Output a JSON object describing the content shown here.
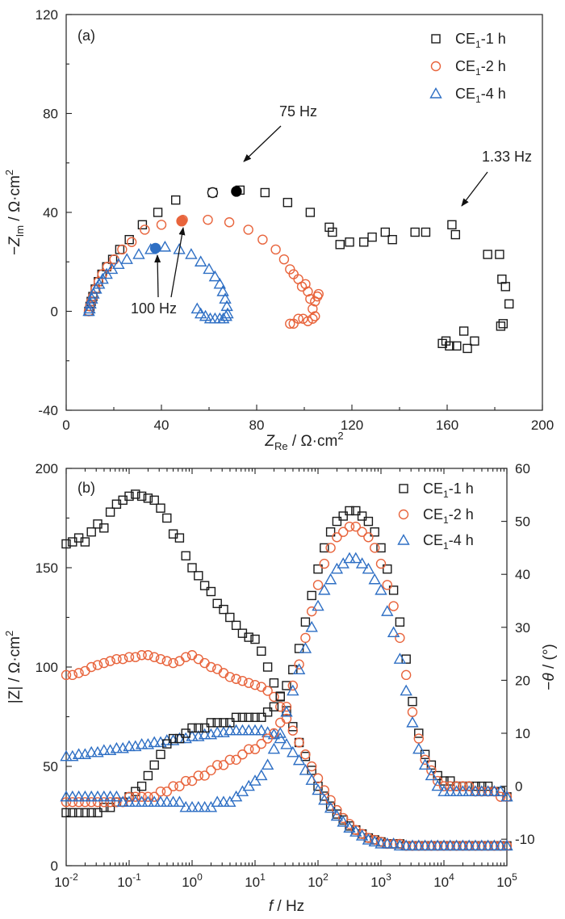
{
  "chart_data": [
    {
      "panel": "(a)",
      "type": "scatter",
      "xlabel": "Z_Re / Ω·cm²",
      "ylabel": "−Z_Im / Ω·cm²",
      "xlim": [
        0,
        200
      ],
      "ylim": [
        -40,
        120
      ],
      "x_ticks": [
        "0",
        "40",
        "80",
        "120",
        "160",
        "200"
      ],
      "y_ticks": [
        "-40",
        "0",
        "40",
        "80",
        "120"
      ],
      "legend_position": "top-right",
      "series": [
        {
          "name": "CE1-1 h",
          "marker": "square",
          "color": "#1a1a1a",
          "x": [
            9.5,
            10.0,
            10.5,
            11.2,
            12.2,
            13.5,
            15.0,
            17.0,
            19.5,
            22.5,
            26.5,
            32.0,
            38.5,
            46.0,
            61.5,
            73.0,
            83.5,
            93.0,
            102.5,
            110.5,
            111.8,
            115.0,
            119.0,
            125.0,
            128.5,
            134.0,
            137.0,
            146.5,
            151.0,
            162.0,
            163.5,
            177.0,
            182.0,
            183.0,
            184.5,
            186.0,
            183.5,
            182.5,
            171.5,
            168.5,
            167.0,
            164.0,
            161.0,
            159.5,
            158.0
          ],
          "y": [
            0,
            2,
            4,
            6,
            9,
            12,
            15,
            18,
            21,
            25,
            29,
            35,
            40,
            45,
            48,
            49,
            48,
            44,
            40,
            34,
            32,
            27,
            28,
            28,
            30,
            32,
            29,
            32,
            32,
            35,
            31,
            23,
            23,
            13,
            10,
            3,
            -5,
            -6,
            -12,
            -15,
            -8,
            -14,
            -14,
            -12,
            -13
          ]
        },
        {
          "name": "CE1-2 h",
          "marker": "circle",
          "color": "#e8643c",
          "x": [
            9.5,
            10.0,
            10.5,
            11.3,
            12.3,
            13.6,
            15.2,
            17.3,
            20.2,
            23.5,
            27.5,
            33.0,
            40.0,
            49.0,
            59.5,
            68.5,
            76.5,
            82.5,
            88.0,
            91.5,
            94.0,
            95.5,
            97.5,
            99.0,
            100.5,
            101.5,
            102.5,
            103.5,
            104.5,
            105.5,
            106.0,
            104.5,
            103.5,
            101.5,
            99.5,
            97.5,
            95.5,
            94.0
          ],
          "y": [
            0,
            2,
            4,
            6,
            9,
            12,
            15,
            18,
            21,
            25,
            28,
            33,
            35,
            37,
            37,
            36,
            33,
            29,
            25,
            21,
            17,
            15,
            13,
            10,
            11,
            8,
            5,
            1,
            -2,
            6,
            7,
            4,
            -3,
            -4,
            -3,
            -3,
            -5,
            -5
          ]
        },
        {
          "name": "CE1-4 h",
          "marker": "triangle",
          "color": "#2e6fc4",
          "x": [
            9.5,
            9.8,
            10.2,
            10.8,
            11.5,
            12.5,
            13.8,
            15.3,
            17.0,
            19.2,
            22.0,
            25.5,
            30.5,
            35.5,
            41.5,
            47.5,
            52.5,
            56.5,
            60.0,
            62.5,
            64.5,
            65.8,
            66.8,
            67.5,
            67.8,
            67.2,
            66.0,
            64.5,
            62.5,
            60.5,
            58.5,
            56.5,
            55.0
          ],
          "y": [
            0,
            1,
            3,
            5,
            7,
            9,
            11,
            13,
            15,
            17,
            19,
            21,
            23,
            25,
            26,
            25,
            23,
            20,
            17,
            14,
            11,
            8,
            5,
            2,
            -1,
            -2,
            -3,
            -3,
            -3,
            -3,
            -2,
            -1,
            1
          ]
        }
      ],
      "highlighted_points": [
        {
          "series": "CE1-1 h",
          "x": 61.5,
          "y": 48,
          "style": "open circle"
        },
        {
          "series": "CE1-1 h",
          "x": 71.5,
          "y": 48.5,
          "style": "filled circle",
          "color": "#000000"
        },
        {
          "series": "CE1-2 h",
          "x": 48.5,
          "y": 36.5,
          "style": "filled circle",
          "color": "#e8643c"
        },
        {
          "series": "CE1-4 h",
          "x": 37.5,
          "y": 25.5,
          "style": "filled circle",
          "color": "#2e6fc4"
        }
      ],
      "annotations": [
        {
          "text": "75 Hz",
          "points_to": [
            71.5,
            48.5
          ]
        },
        {
          "text": "1.33 Hz",
          "points_to": [
            163,
            33
          ]
        },
        {
          "text": "100 Hz",
          "points_to": [
            [
              37.5,
              25.5
            ],
            [
              48.5,
              36.5
            ]
          ]
        }
      ]
    },
    {
      "panel": "(b)",
      "type": "scatter",
      "xscale": "log",
      "xlabel": "f / Hz",
      "ylabel_left": "|Z| / Ω·cm²",
      "ylabel_right": "−θ / (°)",
      "xlim": [
        0.01,
        100000
      ],
      "ylim_left": [
        0,
        200
      ],
      "ylim_right": [
        -15,
        60
      ],
      "x_ticks": [
        "10-2",
        "10-1",
        "100",
        "101",
        "102",
        "103",
        "104",
        "105"
      ],
      "y_ticks_left": [
        "0",
        "50",
        "100",
        "150",
        "200"
      ],
      "y_ticks_right": [
        "-10",
        "0",
        "10",
        "20",
        "30",
        "40",
        "50",
        "60"
      ],
      "legend_position": "top-right",
      "freq_log10": [
        -2.0,
        -1.9,
        -1.8,
        -1.7,
        -1.6,
        -1.5,
        -1.4,
        -1.3,
        -1.2,
        -1.1,
        -1.0,
        -0.9,
        -0.8,
        -0.7,
        -0.6,
        -0.5,
        -0.4,
        -0.3,
        -0.2,
        -0.1,
        0.0,
        0.1,
        0.2,
        0.3,
        0.4,
        0.5,
        0.6,
        0.7,
        0.8,
        0.9,
        1.0,
        1.1,
        1.2,
        1.3,
        1.4,
        1.5,
        1.6,
        1.7,
        1.8,
        1.9,
        2.0,
        2.1,
        2.2,
        2.3,
        2.4,
        2.5,
        2.6,
        2.7,
        2.8,
        2.9,
        3.0,
        3.1,
        3.2,
        3.3,
        3.4,
        3.5,
        3.6,
        3.7,
        3.8,
        3.9,
        4.0,
        4.1,
        4.2,
        4.3,
        4.4,
        4.5,
        4.6,
        4.7,
        4.8,
        4.9,
        5.0
      ],
      "series": [
        {
          "name": "CE1-1 h",
          "quantity": "|Z|",
          "axis": "left",
          "marker": "square",
          "color": "#1a1a1a",
          "values": [
            162,
            163,
            165,
            163,
            168,
            172,
            170,
            178,
            182,
            184,
            186,
            187,
            186,
            185,
            184,
            180,
            175,
            167,
            165,
            156,
            150,
            146,
            141,
            138,
            132,
            129,
            125,
            121,
            117,
            115,
            114,
            108,
            100,
            92,
            85,
            78,
            70,
            62,
            55,
            48,
            40,
            35,
            30,
            26,
            23,
            20,
            18,
            16,
            14,
            13,
            12,
            11,
            11,
            11,
            10,
            10,
            10,
            10,
            10,
            10,
            10,
            10,
            10,
            10,
            10,
            10,
            10,
            10,
            10,
            10,
            10
          ]
        },
        {
          "name": "CE1-2 h",
          "quantity": "|Z|",
          "axis": "left",
          "marker": "circle",
          "color": "#e8643c",
          "values": [
            96,
            96,
            97,
            98,
            100,
            101,
            102,
            103,
            104,
            104,
            105,
            105,
            106,
            106,
            105,
            104,
            103,
            102,
            103,
            105,
            106,
            104,
            102,
            100,
            99,
            97,
            95,
            94,
            93,
            92,
            91,
            90,
            88,
            85,
            80,
            74,
            68,
            62,
            56,
            50,
            44,
            38,
            33,
            28,
            24,
            21,
            18,
            16,
            14,
            13,
            12,
            11,
            11,
            11,
            10,
            10,
            10,
            10,
            10,
            10,
            10,
            10,
            10,
            10,
            10,
            10,
            10,
            10,
            10,
            10,
            10
          ]
        },
        {
          "name": "CE1-4 h",
          "quantity": "|Z|",
          "axis": "left",
          "marker": "triangle",
          "color": "#2e6fc4",
          "values": [
            55,
            55,
            56,
            56,
            57,
            57,
            58,
            58,
            59,
            59,
            60,
            60,
            61,
            61,
            62,
            62,
            63,
            63,
            64,
            64,
            65,
            65,
            66,
            66,
            67,
            67,
            68,
            68,
            68,
            68,
            68,
            68,
            67,
            66,
            64,
            61,
            57,
            53,
            48,
            43,
            38,
            33,
            29,
            25,
            22,
            19,
            17,
            15,
            13,
            12,
            11,
            11,
            11,
            10,
            10,
            10,
            10,
            10,
            10,
            10,
            10,
            10,
            10,
            10,
            10,
            10,
            10,
            10,
            10,
            10,
            10
          ]
        },
        {
          "name": "CE1-1 h",
          "quantity": "−θ",
          "axis": "right",
          "marker": "square",
          "color": "#1a1a1a",
          "values": [
            -5,
            -5,
            -5,
            -5,
            -5,
            -5,
            -4,
            -4,
            -3,
            -3,
            -2,
            -1,
            0,
            2,
            4,
            6,
            8,
            9,
            9,
            10,
            11,
            11,
            11,
            12,
            12,
            12,
            12,
            13,
            13,
            13,
            13,
            13,
            14,
            15,
            17,
            19,
            22,
            26,
            31,
            36,
            41,
            45,
            48,
            50,
            51,
            52,
            52,
            51,
            50,
            48,
            45,
            41,
            37,
            31,
            24,
            16,
            10,
            6,
            4,
            2,
            1,
            1,
            0,
            0,
            0,
            0,
            0,
            0,
            -1,
            -1,
            -2
          ]
        },
        {
          "name": "CE1-2 h",
          "quantity": "−θ",
          "axis": "right",
          "marker": "circle",
          "color": "#e8643c",
          "values": [
            -3,
            -3,
            -3,
            -3,
            -3,
            -3,
            -3,
            -3,
            -3,
            -3,
            -2,
            -2,
            -2,
            -2,
            -2,
            -1,
            -1,
            0,
            0,
            1,
            1,
            2,
            2,
            3,
            4,
            4,
            5,
            5,
            6,
            7,
            7,
            8,
            9,
            10,
            12,
            15,
            19,
            23,
            28,
            33,
            38,
            42,
            45,
            47,
            48,
            49,
            49,
            48,
            47,
            45,
            42,
            38,
            34,
            28,
            21,
            14,
            9,
            5,
            3,
            1,
            0,
            0,
            0,
            0,
            0,
            -1,
            -1,
            -1,
            -1,
            -2,
            -2
          ]
        },
        {
          "name": "CE1-4 h",
          "quantity": "−θ",
          "axis": "right",
          "marker": "triangle",
          "color": "#2e6fc4",
          "values": [
            -2,
            -2,
            -2,
            -2,
            -2,
            -2,
            -2,
            -2,
            -2,
            -3,
            -3,
            -3,
            -3,
            -3,
            -3,
            -3,
            -3,
            -3,
            -3,
            -4,
            -4,
            -4,
            -4,
            -4,
            -3,
            -3,
            -3,
            -2,
            -1,
            0,
            1,
            2,
            4,
            7,
            10,
            14,
            18,
            22,
            26,
            30,
            34,
            37,
            39,
            41,
            42,
            43,
            43,
            42,
            41,
            39,
            37,
            33,
            29,
            24,
            18,
            12,
            7,
            4,
            2,
            0,
            -1,
            -1,
            -1,
            -1,
            -1,
            -1,
            -1,
            -1,
            -1,
            -1,
            -2
          ]
        }
      ]
    }
  ],
  "panel_a": {
    "label": "(a)",
    "legend": [
      {
        "base": "CE",
        "sub": "1",
        "rest": "-1 h",
        "marker": "square",
        "color": "#1a1a1a"
      },
      {
        "base": "CE",
        "sub": "1",
        "rest": "-2 h",
        "marker": "circle",
        "color": "#e8643c"
      },
      {
        "base": "CE",
        "sub": "1",
        "rest": "-4 h",
        "marker": "triangle",
        "color": "#2e6fc4"
      }
    ],
    "xlabel": {
      "italic": "Z",
      "sub": "Re",
      "rest": " / Ω·cm",
      "sup": "2"
    },
    "ylabel": {
      "pre": "−",
      "italic": "Z",
      "sub": "Im",
      "rest": " / Ω·cm",
      "sup": "2"
    },
    "annotations": [
      "75 Hz",
      "1.33 Hz",
      "100 Hz"
    ]
  },
  "panel_b": {
    "label": "(b)",
    "legend": [
      {
        "base": "CE",
        "sub": "1",
        "rest": "-1 h",
        "marker": "square",
        "color": "#1a1a1a"
      },
      {
        "base": "CE",
        "sub": "1",
        "rest": "-2 h",
        "marker": "circle",
        "color": "#e8643c"
      },
      {
        "base": "CE",
        "sub": "1",
        "rest": "-4 h",
        "marker": "triangle",
        "color": "#2e6fc4"
      }
    ],
    "xlabel": {
      "italic": "f",
      "rest": " / Hz"
    },
    "ylabel_left": {
      "text": "|Z| / Ω·cm",
      "sup": "2"
    },
    "ylabel_right": {
      "pre": "−",
      "italic": "θ",
      "rest": " / (°)"
    }
  }
}
